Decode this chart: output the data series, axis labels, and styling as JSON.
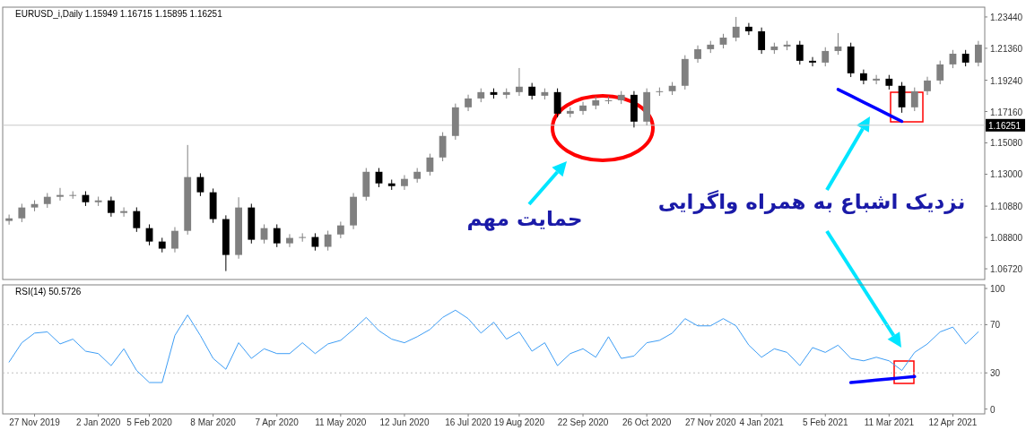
{
  "chart_data": [
    {
      "type": "candlestick",
      "title": "EURUSD_i,Daily 1.15949 1.16715 1.15895 1.16251",
      "tick_labels": "y",
      "categories": [
        null,
        null,
        null,
        null,
        null,
        null,
        null,
        null,
        null,
        null,
        null,
        null,
        null,
        null,
        null,
        null,
        null,
        null,
        null,
        null,
        null,
        null,
        null,
        null,
        null,
        null,
        null,
        null,
        null,
        null,
        null,
        null,
        null,
        null,
        null,
        null,
        null,
        null,
        null,
        null,
        null,
        null,
        null,
        null,
        null,
        null,
        null,
        null,
        null,
        null,
        null,
        null,
        null,
        null,
        null,
        null,
        null,
        null,
        null,
        null,
        null,
        null,
        null,
        null,
        null,
        null,
        null,
        null,
        null,
        null,
        null,
        null,
        null,
        null,
        null,
        null,
        null
      ],
      "colors": [
        "#808080",
        "#808080",
        "#808080",
        "#808080",
        "#808080",
        "#808080",
        "#000000",
        "#808080",
        "#000000",
        "#808080",
        "#000000",
        "#000000",
        "#000000",
        "#808080",
        "#808080",
        "#000000",
        "#000000",
        "#000000",
        "#808080",
        "#000000",
        "#808080",
        "#000000",
        "#808080",
        "#808080",
        "#000000",
        "#808080",
        "#808080",
        "#808080",
        "#808080",
        "#000000",
        "#000000",
        "#808080",
        "#808080",
        "#808080",
        "#808080",
        "#808080",
        "#808080",
        "#808080",
        "#000000",
        "#808080",
        "#808080",
        "#000000",
        "#808080",
        "#000000",
        "#808080",
        "#808080",
        "#808080",
        "#808080",
        "#808080",
        "#000000",
        "#808080",
        "#808080",
        "#808080",
        "#808080",
        "#808080",
        "#808080",
        "#808080",
        "#808080",
        "#000000",
        "#000000",
        "#808080",
        "#808080",
        "#000000",
        "#000000",
        "#808080",
        "#808080",
        "#000000",
        "#000000",
        "#808080",
        "#000000",
        "#000000",
        "#808080",
        "#808080",
        "#808080",
        "#808080",
        "#000000",
        "#808080"
      ],
      "ohlc": [
        [
          1.099,
          1.1032,
          1.0965,
          1.1007
        ],
        [
          1.1007,
          1.1104,
          1.0982,
          1.1079
        ],
        [
          1.1079,
          1.1127,
          1.1054,
          1.1102
        ],
        [
          1.1102,
          1.1175,
          1.1077,
          1.115
        ],
        [
          1.115,
          1.1209,
          1.1125,
          1.1162
        ],
        [
          1.1162,
          1.1187,
          1.1137,
          1.1162
        ],
        [
          1.1162,
          1.1187,
          1.1089,
          1.1114
        ],
        [
          1.1114,
          1.1151,
          1.1089,
          1.1126
        ],
        [
          1.1126,
          1.1151,
          1.1018,
          1.1043
        ],
        [
          1.1043,
          1.108,
          1.1018,
          1.1055
        ],
        [
          1.1055,
          1.108,
          1.0917,
          1.0942
        ],
        [
          1.0942,
          1.0967,
          1.0828,
          1.0853
        ],
        [
          1.0853,
          1.0878,
          1.0781,
          1.0806
        ],
        [
          1.0806,
          1.0949,
          1.0781,
          1.0924
        ],
        [
          1.0924,
          1.1494,
          1.0899,
          1.1281
        ],
        [
          1.1281,
          1.1306,
          1.1155,
          1.118
        ],
        [
          1.118,
          1.1205,
          1.0977,
          1.1002
        ],
        [
          1.1002,
          1.1027,
          1.0657,
          1.0764
        ],
        [
          1.0764,
          1.1147,
          1.0739,
          1.1079
        ],
        [
          1.1079,
          1.1104,
          1.084,
          1.0865
        ],
        [
          1.0865,
          1.0967,
          1.084,
          1.0942
        ],
        [
          1.0942,
          1.0967,
          1.0816,
          1.0841
        ],
        [
          1.0841,
          1.0902,
          1.0816,
          1.0877
        ],
        [
          1.0877,
          1.0908,
          1.0852,
          1.0883
        ],
        [
          1.0883,
          1.0908,
          1.0793,
          1.0818
        ],
        [
          1.0818,
          1.0925,
          1.0793,
          1.09
        ],
        [
          1.09,
          1.0985,
          1.0875,
          1.096
        ],
        [
          1.096,
          1.1175,
          1.0935,
          1.115
        ],
        [
          1.115,
          1.1341,
          1.1125,
          1.1316
        ],
        [
          1.1316,
          1.1341,
          1.1214,
          1.1239
        ],
        [
          1.1239,
          1.1264,
          1.1196,
          1.1221
        ],
        [
          1.1221,
          1.1294,
          1.1196,
          1.1269
        ],
        [
          1.1269,
          1.1341,
          1.1244,
          1.1316
        ],
        [
          1.1316,
          1.1436,
          1.1291,
          1.1411
        ],
        [
          1.1411,
          1.1579,
          1.1386,
          1.1554
        ],
        [
          1.1554,
          1.1769,
          1.1529,
          1.1744
        ],
        [
          1.1744,
          1.1828,
          1.1719,
          1.1803
        ],
        [
          1.1803,
          1.187,
          1.1778,
          1.1845
        ],
        [
          1.1845,
          1.187,
          1.1802,
          1.1827
        ],
        [
          1.1827,
          1.187,
          1.1802,
          1.1845
        ],
        [
          1.1845,
          1.2005,
          1.182,
          1.1881
        ],
        [
          1.1881,
          1.1906,
          1.1796,
          1.1821
        ],
        [
          1.1821,
          1.187,
          1.1796,
          1.1845
        ],
        [
          1.1845,
          1.187,
          1.1677,
          1.1702
        ],
        [
          1.1702,
          1.1745,
          1.1677,
          1.172
        ],
        [
          1.172,
          1.1781,
          1.1695,
          1.1756
        ],
        [
          1.1756,
          1.1816,
          1.1731,
          1.1791
        ],
        [
          1.1791,
          1.1816,
          1.1766,
          1.1791
        ],
        [
          1.1791,
          1.1852,
          1.1766,
          1.1827
        ],
        [
          1.1827,
          1.1852,
          1.161,
          1.1649
        ],
        [
          1.1649,
          1.187,
          1.1624,
          1.1845
        ],
        [
          1.1845,
          1.1876,
          1.182,
          1.1851
        ],
        [
          1.1851,
          1.1912,
          1.1826,
          1.1887
        ],
        [
          1.1887,
          1.209,
          1.1862,
          1.2065
        ],
        [
          1.2065,
          1.2155,
          1.204,
          1.213
        ],
        [
          1.213,
          1.2185,
          1.2105,
          1.216
        ],
        [
          1.216,
          1.2232,
          1.2135,
          1.2207
        ],
        [
          1.2207,
          1.2344,
          1.2182,
          1.2279
        ],
        [
          1.2279,
          1.2304,
          1.2224,
          1.2249
        ],
        [
          1.2249,
          1.2274,
          1.2099,
          1.2124
        ],
        [
          1.2124,
          1.2173,
          1.2099,
          1.2148
        ],
        [
          1.2148,
          1.2185,
          1.2123,
          1.216
        ],
        [
          1.216,
          1.2185,
          1.2028,
          1.2053
        ],
        [
          1.2053,
          1.2078,
          1.2016,
          1.2041
        ],
        [
          1.2041,
          1.2143,
          1.2016,
          1.2118
        ],
        [
          1.2118,
          1.2237,
          1.2093,
          1.2148
        ],
        [
          1.2148,
          1.2173,
          1.1945,
          1.197
        ],
        [
          1.197,
          1.1995,
          1.1897,
          1.1922
        ],
        [
          1.1922,
          1.1959,
          1.1897,
          1.1934
        ],
        [
          1.1934,
          1.1959,
          1.1862,
          1.1887
        ],
        [
          1.1887,
          1.1912,
          1.1708,
          1.1744
        ],
        [
          1.1744,
          1.1876,
          1.1719,
          1.1851
        ],
        [
          1.1851,
          1.1947,
          1.1826,
          1.1922
        ],
        [
          1.1922,
          1.2054,
          1.1897,
          1.2029
        ],
        [
          1.2029,
          1.2125,
          1.2004,
          1.21
        ],
        [
          1.21,
          1.2125,
          1.2016,
          1.2041
        ],
        [
          1.2041,
          1.2185,
          1.2016,
          1.216
        ]
      ],
      "series": [
        {
          "type": "line",
          "color": "#0000ff",
          "values": [
            null,
            null,
            null,
            null,
            null,
            null,
            null,
            null,
            null,
            null,
            null,
            null,
            null,
            null,
            null,
            null,
            null,
            null,
            null,
            null,
            null,
            null,
            null,
            null,
            null,
            null,
            null,
            null,
            null,
            null,
            null,
            null,
            null,
            null,
            null,
            null,
            null,
            null,
            null,
            null,
            null,
            null,
            null,
            null,
            null,
            null,
            null,
            null,
            null,
            null,
            null,
            null,
            null,
            null,
            null,
            null,
            null,
            null,
            null,
            null,
            null,
            null,
            null,
            null,
            null,
            1.1863,
            1.1821,
            1.1778,
            1.1736,
            1.1693,
            1.1651,
            null,
            null,
            null,
            null,
            null,
            null
          ]
        }
      ],
      "ylim": [
        1.0601,
        1.2409
      ],
      "yticks": [
        {
          "value": 1.0672,
          "label": "1.06720"
        },
        {
          "value": 1.088,
          "label": "1.08800"
        },
        {
          "value": 1.1088,
          "label": "1.10880"
        },
        {
          "value": 1.13,
          "label": "1.13000"
        },
        {
          "value": 1.1508,
          "label": "1.15080"
        },
        {
          "value": 1.1716,
          "label": "1.17160"
        },
        {
          "value": 1.1924,
          "label": "1.19240"
        },
        {
          "value": 1.2136,
          "label": "1.21360"
        },
        {
          "value": 1.2344,
          "label": "1.23440"
        }
      ],
      "ref_lines": [
        {
          "axis": "y",
          "value": 1.16251,
          "label": "1.16251",
          "color": "#c8c8c8"
        }
      ],
      "annotations": [
        "حمایت مهم",
        "نزدیک اشباع به همراه واگرایی"
      ]
    },
    {
      "type": "line",
      "title": "RSI(14) 50.5726",
      "categories": [
        null,
        null,
        "27 Nov 2019",
        null,
        null,
        null,
        null,
        "2 Jan 2020",
        null,
        null,
        null,
        "5 Feb 2020",
        null,
        null,
        null,
        null,
        "8 Mar 2020",
        null,
        null,
        null,
        null,
        "7 Apr 2020",
        null,
        null,
        null,
        null,
        "11 May 2020",
        null,
        null,
        null,
        null,
        "12 Jun 2020",
        null,
        null,
        null,
        null,
        "16 Jul 2020",
        null,
        null,
        null,
        "19 Aug 2020",
        null,
        null,
        null,
        null,
        "22 Sep 2020",
        null,
        null,
        null,
        null,
        "26 Oct 2020",
        null,
        null,
        null,
        null,
        "27 Nov 2020",
        null,
        null,
        null,
        "4 Jan 2021",
        null,
        null,
        null,
        null,
        "5 Feb 2021",
        null,
        null,
        null,
        null,
        "11 Mar 2021",
        null,
        null,
        null,
        null,
        "12 Apr 2021",
        null,
        null
      ],
      "series": [
        {
          "color": "#3d9df5",
          "values": [
            39,
            55,
            63,
            64,
            54,
            58,
            48,
            46,
            36,
            50,
            32,
            22,
            22,
            61,
            78,
            61,
            42,
            33,
            55,
            42,
            50,
            46,
            46,
            55,
            46,
            54,
            57,
            66,
            76,
            65,
            58,
            55,
            60,
            66,
            76,
            82,
            75,
            63,
            72,
            58,
            64,
            48,
            55,
            36,
            46,
            50,
            43,
            60,
            42,
            44,
            55,
            57,
            63,
            75,
            69,
            69,
            75,
            69,
            53,
            43,
            50,
            47,
            36,
            51,
            47,
            53,
            42,
            40,
            43,
            40,
            32,
            47,
            54,
            64,
            68,
            54,
            64
          ]
        },
        {
          "color": "#0000ff",
          "values": [
            null,
            null,
            null,
            null,
            null,
            null,
            null,
            null,
            null,
            null,
            null,
            null,
            null,
            null,
            null,
            null,
            null,
            null,
            null,
            null,
            null,
            null,
            null,
            null,
            null,
            null,
            null,
            null,
            null,
            null,
            null,
            null,
            null,
            null,
            null,
            null,
            null,
            null,
            null,
            null,
            null,
            null,
            null,
            null,
            null,
            null,
            null,
            null,
            null,
            null,
            null,
            null,
            null,
            null,
            null,
            null,
            null,
            null,
            null,
            null,
            null,
            null,
            null,
            null,
            null,
            null,
            22,
            23,
            24,
            25,
            26,
            27,
            null,
            null,
            null,
            null,
            null
          ]
        }
      ],
      "ylim": [
        -4,
        103
      ],
      "yticks": [
        0,
        30,
        70,
        100
      ],
      "ref_lines": [
        {
          "axis": "y",
          "value": 30,
          "color": "#c0c0c0",
          "line_style": "dotted"
        },
        {
          "axis": "y",
          "value": 70,
          "color": "#c0c0c0",
          "line_style": "dotted"
        }
      ]
    }
  ]
}
